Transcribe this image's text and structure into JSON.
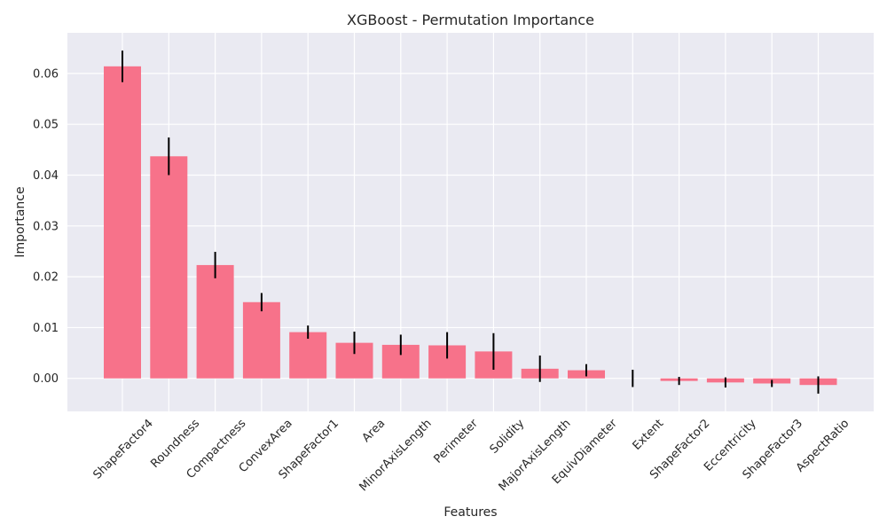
{
  "chart_data": {
    "type": "bar",
    "title": "XGBoost - Permutation Importance",
    "xlabel": "Features",
    "ylabel": "Importance",
    "categories": [
      "ShapeFactor4",
      "Roundness",
      "Compactness",
      "ConvexArea",
      "ShapeFactor1",
      "Area",
      "MinorAxisLength",
      "Perimeter",
      "Solidity",
      "MajorAxisLength",
      "EquivDiameter",
      "Extent",
      "ShapeFactor2",
      "Eccentricity",
      "ShapeFactor3",
      "AspectRatio"
    ],
    "values": [
      0.0614,
      0.0437,
      0.0223,
      0.015,
      0.0091,
      0.007,
      0.0066,
      0.0065,
      0.0053,
      0.0019,
      0.0016,
      0.0,
      -0.0005,
      -0.0008,
      -0.001,
      -0.0013
    ],
    "errors": [
      0.0031,
      0.0037,
      0.0026,
      0.0018,
      0.0013,
      0.0022,
      0.002,
      0.0026,
      0.0036,
      0.0026,
      0.0012,
      0.0017,
      0.0008,
      0.001,
      0.0007,
      0.0017
    ],
    "ylim": [
      -0.0065,
      0.068
    ],
    "yticks": [
      0.0,
      0.01,
      0.02,
      0.03,
      0.04,
      0.05,
      0.06
    ],
    "ytick_labels": [
      "0.00",
      "0.01",
      "0.02",
      "0.03",
      "0.04",
      "0.05",
      "0.06"
    ],
    "grid": true,
    "colors": {
      "bar": "#f7728a",
      "error": "#000000",
      "plot_bg": "#eaeaf2",
      "grid": "#ffffff"
    }
  }
}
